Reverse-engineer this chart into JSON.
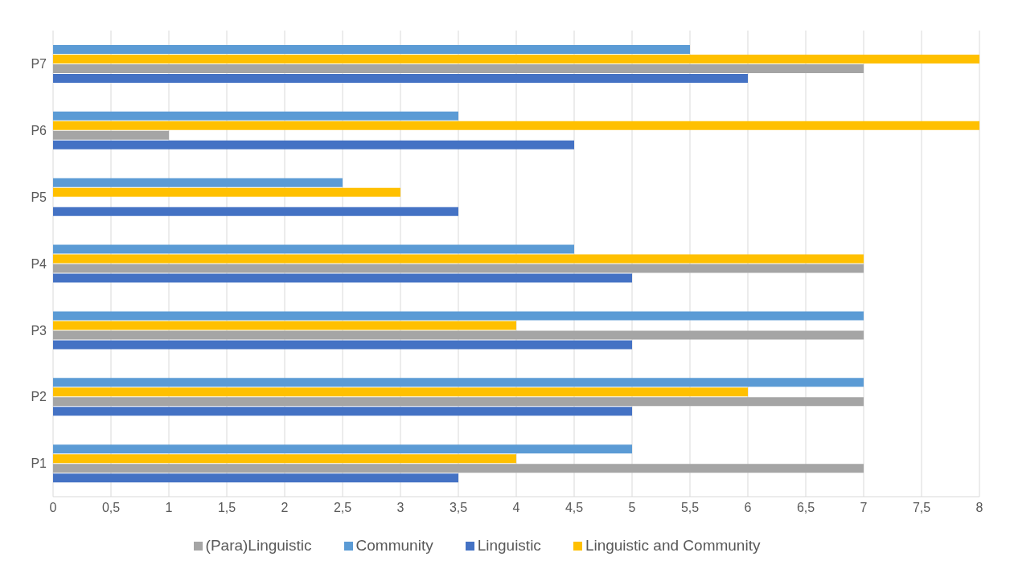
{
  "chart_data": {
    "type": "bar",
    "orientation": "horizontal",
    "categories": [
      "P7",
      "P6",
      "P5",
      "P4",
      "P3",
      "P2",
      "P1"
    ],
    "series": [
      {
        "name": "Community",
        "color": "#5b9bd5",
        "values": [
          5.5,
          3.5,
          2.5,
          4.5,
          7,
          7,
          5
        ]
      },
      {
        "name": "Linguistic and Community",
        "color": "#ffc000",
        "values": [
          8,
          8,
          3,
          7,
          4,
          6,
          4
        ]
      },
      {
        "name": "(Para)Linguistic",
        "color": "#a5a5a5",
        "values": [
          7,
          1,
          0,
          7,
          7,
          7,
          7
        ]
      },
      {
        "name": "Linguistic",
        "color": "#4472c4",
        "values": [
          6,
          4.5,
          3.5,
          5,
          5,
          5,
          3.5
        ]
      }
    ],
    "xlim": [
      0,
      8
    ],
    "xticks": [
      0,
      {
        "value": 0.5,
        "label": "0,5"
      },
      1,
      {
        "value": 1.5,
        "label": "1,5"
      },
      2,
      {
        "value": 2.5,
        "label": "2,5"
      },
      3,
      {
        "value": 3.5,
        "label": "3,5"
      },
      4,
      {
        "value": 4.5,
        "label": "4,5"
      },
      5,
      {
        "value": 5.5,
        "label": "5,5"
      },
      6,
      {
        "value": 6.5,
        "label": "6,5"
      },
      7,
      {
        "value": 7.5,
        "label": "7,5"
      },
      8
    ],
    "grid": "x",
    "legend": "bottom"
  }
}
